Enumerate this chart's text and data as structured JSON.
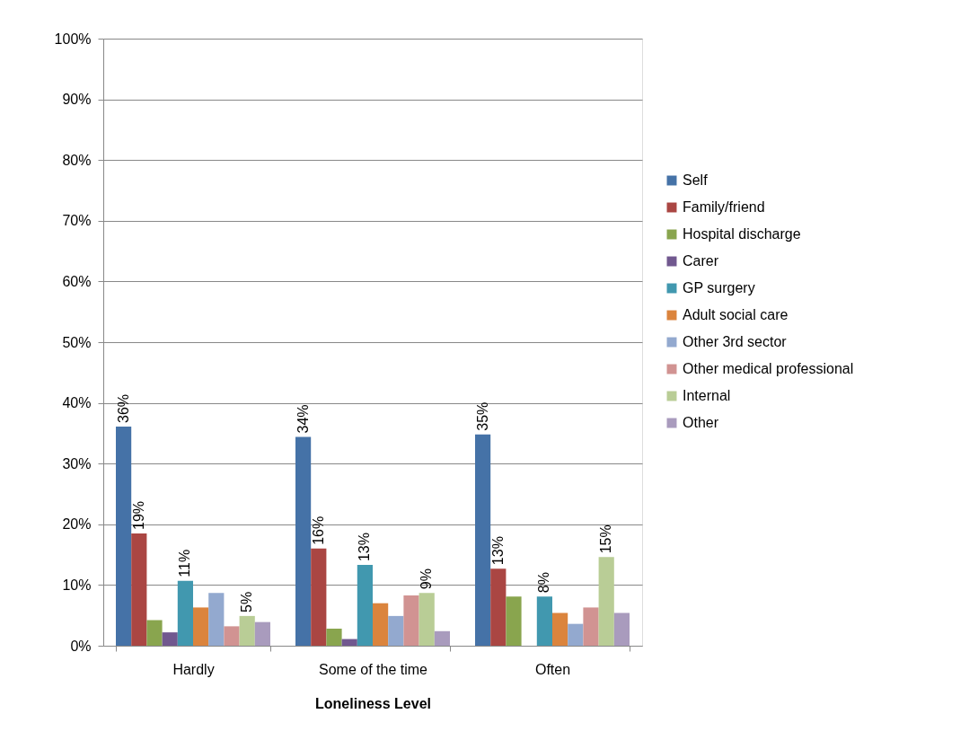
{
  "chart_data": {
    "type": "bar",
    "xlabel": "Loneliness Level",
    "categories": [
      "Hardly",
      "Some of the time",
      "Often"
    ],
    "series": [
      {
        "name": "Self",
        "color": "#4572a7",
        "values": [
          36.1,
          34.4,
          34.8
        ],
        "value_labels": [
          "36%",
          "34%",
          "35%"
        ]
      },
      {
        "name": "Family/friend",
        "color": "#aa4643",
        "values": [
          18.5,
          16.0,
          12.7
        ],
        "value_labels": [
          "19%",
          "16%",
          "13%"
        ]
      },
      {
        "name": "Hospital discharge",
        "color": "#89a54e",
        "values": [
          4.2,
          2.8,
          8.1
        ]
      },
      {
        "name": "Carer",
        "color": "#71588f",
        "values": [
          2.2,
          1.1,
          0
        ]
      },
      {
        "name": "GP surgery",
        "color": "#4198af",
        "values": [
          10.7,
          13.3,
          8.1
        ],
        "value_labels": [
          "11%",
          "13%",
          "8%"
        ]
      },
      {
        "name": "Adult social care",
        "color": "#db843d",
        "values": [
          6.3,
          7.0,
          5.4
        ]
      },
      {
        "name": "Other 3rd sector",
        "color": "#93a9cf",
        "values": [
          8.7,
          4.9,
          3.6
        ]
      },
      {
        "name": "Other medical professional",
        "color": "#d19392",
        "values": [
          3.2,
          8.3,
          6.3
        ]
      },
      {
        "name": "Internal",
        "color": "#b9cd96",
        "values": [
          4.9,
          8.7,
          14.6
        ],
        "value_labels": [
          "5%",
          "9%",
          "15%"
        ]
      },
      {
        "name": "Other",
        "color": "#a99bbd",
        "values": [
          3.9,
          2.4,
          5.4
        ]
      }
    ],
    "ylim": [
      0,
      100
    ],
    "yticks": [
      {
        "value": 0,
        "label": "0%"
      },
      {
        "value": 10,
        "label": "10%"
      },
      {
        "value": 20,
        "label": "20%"
      },
      {
        "value": 30,
        "label": "30%"
      },
      {
        "value": 40,
        "label": "40%"
      },
      {
        "value": 50,
        "label": "50%"
      },
      {
        "value": 60,
        "label": "60%"
      },
      {
        "value": 70,
        "label": "70%"
      },
      {
        "value": 80,
        "label": "80%"
      },
      {
        "value": 90,
        "label": "90%"
      },
      {
        "value": 100,
        "label": "100%"
      }
    ],
    "grid": "y",
    "legend": "right"
  }
}
